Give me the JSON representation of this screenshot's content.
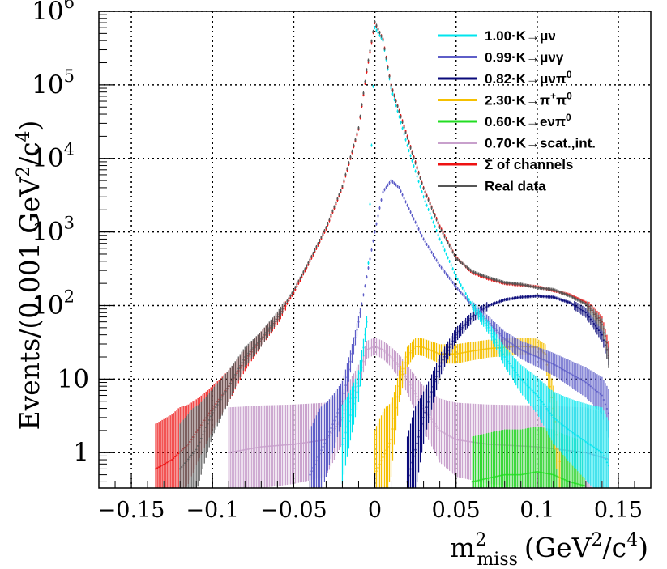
{
  "chart_data": {
    "type": "line",
    "title": "",
    "xlabel": "m²miss (GeV²/c⁴)",
    "ylabel": "Events/(0.001 GeV²/c⁴)",
    "x_scale": "linear",
    "y_scale": "log",
    "xlim": [
      -0.17,
      0.17
    ],
    "ylim": [
      0.33,
      1000000
    ],
    "grid": true,
    "legend_position": "top-right",
    "x_ticks": [
      {
        "value": -0.15,
        "label": "−0.15"
      },
      {
        "value": -0.1,
        "label": "−0.1"
      },
      {
        "value": -0.05,
        "label": "−0.05"
      },
      {
        "value": 0,
        "label": "0"
      },
      {
        "value": 0.05,
        "label": "0.05"
      },
      {
        "value": 0.1,
        "label": "0.1"
      },
      {
        "value": 0.15,
        "label": "0.15"
      }
    ],
    "y_ticks": [
      {
        "value": 1,
        "base": "1",
        "exp": ""
      },
      {
        "value": 10,
        "base": "10",
        "exp": ""
      },
      {
        "value": 100,
        "base": "10",
        "exp": "2"
      },
      {
        "value": 1000,
        "base": "10",
        "exp": "3"
      },
      {
        "value": 10000,
        "base": "10",
        "exp": "4"
      },
      {
        "value": 100000,
        "base": "10",
        "exp": "5"
      },
      {
        "value": 1000000,
        "base": "10",
        "exp": "6"
      }
    ],
    "series": [
      {
        "name": "1.00·K→μν",
        "color": "#00e5ee",
        "points": [
          [
            -0.02,
            1.3
          ],
          [
            -0.01,
            8
          ],
          [
            -0.005,
            60
          ],
          [
            0,
            600000
          ],
          [
            0.005,
            400000
          ],
          [
            0.01,
            90000
          ],
          [
            0.02,
            15000
          ],
          [
            0.03,
            3000
          ],
          [
            0.04,
            800
          ],
          [
            0.05,
            250
          ],
          [
            0.06,
            100
          ],
          [
            0.07,
            50
          ],
          [
            0.08,
            20
          ],
          [
            0.09,
            10
          ],
          [
            0.1,
            6
          ],
          [
            0.11,
            3
          ],
          [
            0.12,
            2
          ],
          [
            0.13,
            1.4
          ],
          [
            0.14,
            1.0
          ],
          [
            0.145,
            0.6
          ]
        ]
      },
      {
        "name": "0.99·K→μνγ",
        "color": "#5e5ec8",
        "points": [
          [
            -0.04,
            0.5
          ],
          [
            -0.03,
            1.5
          ],
          [
            -0.02,
            5
          ],
          [
            -0.01,
            60
          ],
          [
            0,
            1000
          ],
          [
            0.005,
            3500
          ],
          [
            0.01,
            5000
          ],
          [
            0.015,
            4000
          ],
          [
            0.02,
            2300
          ],
          [
            0.03,
            800
          ],
          [
            0.04,
            350
          ],
          [
            0.05,
            180
          ],
          [
            0.06,
            100
          ],
          [
            0.07,
            60
          ],
          [
            0.08,
            35
          ],
          [
            0.09,
            25
          ],
          [
            0.1,
            20
          ],
          [
            0.11,
            16
          ],
          [
            0.12,
            12
          ],
          [
            0.13,
            9
          ],
          [
            0.14,
            6
          ],
          [
            0.145,
            3
          ]
        ]
      },
      {
        "name": "0.82·K→μνπ⁰",
        "color": "#0a0a7a",
        "points": [
          [
            0.02,
            0.4
          ],
          [
            0.03,
            3
          ],
          [
            0.04,
            15
          ],
          [
            0.05,
            40
          ],
          [
            0.06,
            70
          ],
          [
            0.07,
            100
          ],
          [
            0.08,
            120
          ],
          [
            0.09,
            130
          ],
          [
            0.1,
            135
          ],
          [
            0.11,
            130
          ],
          [
            0.12,
            110
          ],
          [
            0.13,
            80
          ],
          [
            0.14,
            40
          ],
          [
            0.145,
            18
          ]
        ]
      },
      {
        "name": "2.30·K→π⁺π⁰",
        "color": "#f5c000",
        "points": [
          [
            0,
            0.5
          ],
          [
            0.01,
            1.5
          ],
          [
            0.015,
            8
          ],
          [
            0.02,
            20
          ],
          [
            0.025,
            28
          ],
          [
            0.03,
            27
          ],
          [
            0.04,
            22
          ],
          [
            0.05,
            22
          ],
          [
            0.06,
            24
          ],
          [
            0.07,
            26
          ],
          [
            0.08,
            27
          ],
          [
            0.09,
            28
          ],
          [
            0.1,
            27
          ],
          [
            0.105,
            22
          ],
          [
            0.11,
            4
          ],
          [
            0.115,
            0.5
          ]
        ]
      },
      {
        "name": "0.60·K→eνπ⁰",
        "color": "#22dd22",
        "points": [
          [
            0.06,
            0.4
          ],
          [
            0.07,
            0.45
          ],
          [
            0.08,
            0.5
          ],
          [
            0.09,
            0.5
          ],
          [
            0.1,
            0.55
          ],
          [
            0.11,
            0.5
          ],
          [
            0.12,
            0.4
          ],
          [
            0.13,
            0.35
          ]
        ]
      },
      {
        "name": "0.70·K→scat.,int.",
        "color": "#c8a0cc",
        "points": [
          [
            -0.09,
            1.0
          ],
          [
            -0.07,
            1.2
          ],
          [
            -0.05,
            1.3
          ],
          [
            -0.03,
            1.5
          ],
          [
            -0.02,
            3
          ],
          [
            -0.01,
            10
          ],
          [
            -0.005,
            25
          ],
          [
            0,
            28
          ],
          [
            0.005,
            25
          ],
          [
            0.01,
            20
          ],
          [
            0.015,
            15
          ],
          [
            0.02,
            10
          ],
          [
            0.03,
            4
          ],
          [
            0.04,
            2
          ],
          [
            0.05,
            1.5
          ],
          [
            0.07,
            1.3
          ],
          [
            0.1,
            1.2
          ],
          [
            0.13,
            1.0
          ],
          [
            0.145,
            0.8
          ]
        ]
      },
      {
        "name": "Σ of channels",
        "color": "#ee1111",
        "points": [
          [
            -0.135,
            0.6
          ],
          [
            -0.125,
            0.8
          ],
          [
            -0.115,
            1.3
          ],
          [
            -0.1,
            4
          ],
          [
            -0.09,
            8
          ],
          [
            -0.08,
            18
          ],
          [
            -0.07,
            35
          ],
          [
            -0.06,
            65
          ],
          [
            -0.05,
            150
          ],
          [
            -0.04,
            400
          ],
          [
            -0.03,
            1100
          ],
          [
            -0.02,
            4000
          ],
          [
            -0.01,
            25000
          ],
          [
            -0.005,
            150000
          ],
          [
            0,
            700000
          ],
          [
            0.005,
            420000
          ],
          [
            0.01,
            100000
          ],
          [
            0.02,
            20000
          ],
          [
            0.03,
            4000
          ],
          [
            0.04,
            1200
          ],
          [
            0.05,
            450
          ],
          [
            0.06,
            280
          ],
          [
            0.07,
            230
          ],
          [
            0.08,
            200
          ],
          [
            0.09,
            190
          ],
          [
            0.1,
            180
          ],
          [
            0.11,
            160
          ],
          [
            0.12,
            140
          ],
          [
            0.13,
            110
          ],
          [
            0.14,
            60
          ],
          [
            0.145,
            20
          ]
        ]
      },
      {
        "name": "Real data",
        "color": "#555555",
        "points": [
          [
            -0.12,
            0.6
          ],
          [
            -0.11,
            1.1
          ],
          [
            -0.1,
            3.5
          ],
          [
            -0.09,
            8
          ],
          [
            -0.08,
            20
          ],
          [
            -0.07,
            35
          ],
          [
            -0.06,
            70
          ],
          [
            -0.05,
            160
          ],
          [
            -0.04,
            420
          ],
          [
            -0.03,
            1150
          ],
          [
            -0.02,
            4200
          ],
          [
            -0.01,
            26000
          ],
          [
            -0.005,
            160000
          ],
          [
            0,
            720000
          ],
          [
            0.005,
            410000
          ],
          [
            0.01,
            98000
          ],
          [
            0.02,
            19000
          ],
          [
            0.03,
            3900
          ],
          [
            0.04,
            1150
          ],
          [
            0.05,
            440
          ],
          [
            0.06,
            290
          ],
          [
            0.07,
            240
          ],
          [
            0.08,
            205
          ],
          [
            0.09,
            195
          ],
          [
            0.1,
            175
          ],
          [
            0.11,
            165
          ],
          [
            0.12,
            135
          ],
          [
            0.13,
            105
          ],
          [
            0.14,
            55
          ],
          [
            0.145,
            15
          ]
        ]
      }
    ]
  },
  "legend": {
    "entries": [
      {
        "prefix": "1.00·K",
        "arrow": "→",
        "rest": "μν",
        "sup": ""
      },
      {
        "prefix": "0.99·K",
        "arrow": "→",
        "rest": "μνγ",
        "sup": ""
      },
      {
        "prefix": "0.82·K",
        "arrow": "→",
        "rest": "μνπ",
        "sup": "0"
      },
      {
        "prefix": "2.30·K",
        "arrow": "→",
        "rest": "π",
        "sup": "+",
        "rest2": "π",
        "sup2": "0"
      },
      {
        "prefix": "0.60·K",
        "arrow": "→",
        "rest": "eνπ",
        "sup": "0"
      },
      {
        "prefix": "0.70·K",
        "arrow": "→",
        "rest": "scat.,int.",
        "sup": ""
      },
      {
        "prefix": "Σ of channels",
        "arrow": "",
        "rest": "",
        "sup": ""
      },
      {
        "prefix": "Real data",
        "arrow": "",
        "rest": "",
        "sup": ""
      }
    ]
  },
  "axis_labels": {
    "y_main": "Events/(0.001 GeV",
    "y_sup1": "2",
    "y_mid": "/c",
    "y_sup2": "4",
    "y_end": ")",
    "x_main": "m",
    "x_sup": "2",
    "x_sub": "miss",
    "x_rest": "(GeV",
    "x_sup2": "2",
    "x_mid": "/c",
    "x_sup3": "4",
    "x_end": ")"
  }
}
